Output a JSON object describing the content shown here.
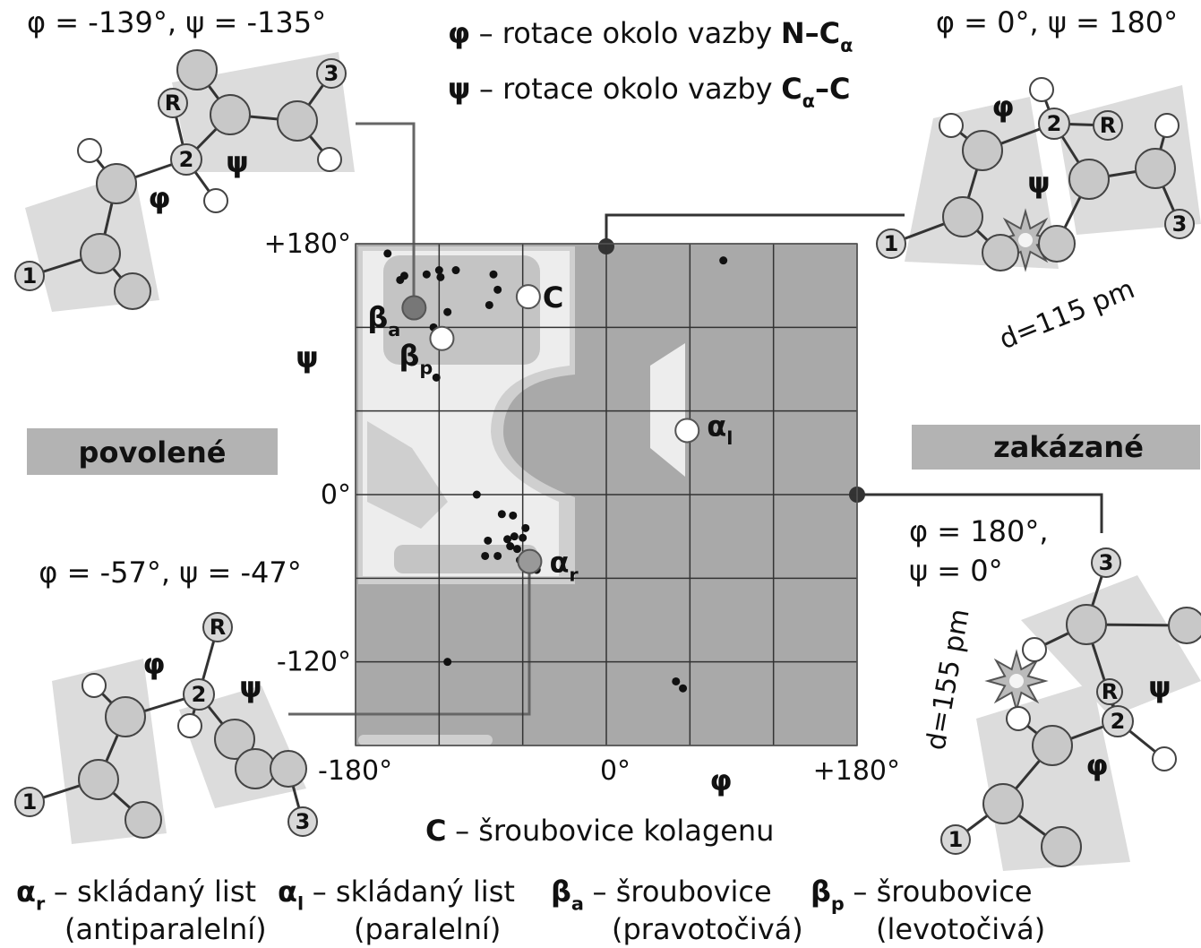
{
  "chart_data": {
    "type": "scatter",
    "header": [
      [
        {
          "text": "φ",
          "style": "bold"
        },
        {
          "text": "– rotace okolo vazby",
          "style": "normal"
        },
        {
          "text": "N–C",
          "style": "bold"
        },
        {
          "text": "α",
          "style": "bold-sub"
        }
      ],
      [
        {
          "text": "ψ",
          "style": "bold"
        },
        {
          "text": "– rotace okolo vazby",
          "style": "normal"
        },
        {
          "text": "C",
          "style": "bold"
        },
        {
          "text": "α",
          "style": "bold-sub"
        },
        {
          "text": "–C",
          "style": "bold"
        }
      ]
    ],
    "x_label": "φ",
    "y_label": "ψ",
    "xlim": [
      -180,
      180
    ],
    "ylim": [
      -180,
      180
    ],
    "xticks": [
      {
        "value": -180,
        "label": "-180°"
      },
      {
        "value": -120,
        "label": null
      },
      {
        "value": -60,
        "label": null
      },
      {
        "value": 0,
        "label": "0°"
      },
      {
        "value": 60,
        "label": null
      },
      {
        "value": 120,
        "label": null
      },
      {
        "value": 180,
        "label": "+180°"
      }
    ],
    "yticks": [
      {
        "value": 180,
        "label": "+180°"
      },
      {
        "value": 120,
        "label": null
      },
      {
        "value": 60,
        "label": null
      },
      {
        "value": 0,
        "label": "0°"
      },
      {
        "value": -60,
        "label": null
      },
      {
        "value": -120,
        "label": "-120°"
      },
      {
        "value": -180,
        "label": null
      }
    ],
    "grid": true,
    "color": "#111111",
    "x": [
      -157,
      -148,
      -145,
      -129,
      -120,
      -119,
      -108,
      -81,
      -78,
      -84,
      -114,
      -124,
      -115,
      -122,
      84,
      -93,
      -75,
      -67,
      -58,
      -66,
      -71,
      -85,
      -60,
      -69,
      -64,
      -87,
      -78,
      -62,
      -57,
      -50,
      -114,
      50,
      55
    ],
    "y": [
      173,
      154,
      157,
      158,
      161,
      156,
      161,
      158,
      147,
      136,
      131,
      120,
      107,
      84,
      168,
      0,
      -14,
      -15,
      -24,
      -30,
      -32,
      -33,
      -31,
      -37,
      -39,
      -44,
      -44,
      -47,
      -51,
      -54,
      -120,
      -134,
      -139
    ],
    "markers": [
      {
        "label": [
          {
            "text": "β",
            "style": "bold"
          },
          {
            "text": "a",
            "style": "bold-sub"
          }
        ],
        "x": -138,
        "y": 134,
        "color": "#777777"
      },
      {
        "label": [
          {
            "text": "C",
            "style": "bold"
          }
        ],
        "x": -56,
        "y": 142,
        "color": "#ffffff"
      },
      {
        "label": [
          {
            "text": "β",
            "style": "bold"
          },
          {
            "text": "p",
            "style": "bold-sub"
          }
        ],
        "x": -118,
        "y": 112,
        "color": "#ffffff"
      },
      {
        "label": [
          {
            "text": "α",
            "style": "bold"
          },
          {
            "text": "l",
            "style": "bold-sub"
          }
        ],
        "x": 58,
        "y": 46,
        "color": "#ffffff"
      },
      {
        "label": [
          {
            "text": "α",
            "style": "bold"
          },
          {
            "text": "r",
            "style": "bold-sub"
          }
        ],
        "x": -55,
        "y": -48,
        "color": "#999999"
      }
    ],
    "regions": [
      "povolené",
      "zakázané"
    ],
    "note": [
      {
        "text": "C",
        "style": "bold"
      },
      {
        "text": "– šroubovice kolagenu",
        "style": "normal"
      }
    ],
    "molecules": [
      {
        "caption": [
          "φ = -139°, ψ = -135°"
        ],
        "labels": [
          "1",
          "2",
          "3",
          "R",
          "φ",
          "ψ"
        ]
      },
      {
        "caption": [
          "φ = 0°, ψ = 180°"
        ],
        "labels": [
          "1",
          "2",
          "3",
          "R",
          "φ",
          "ψ"
        ],
        "distance": "d=115 pm"
      },
      {
        "caption": [
          "φ = -57°, ψ = -47°"
        ],
        "labels": [
          "1",
          "2",
          "3",
          "R",
          "φ",
          "ψ"
        ]
      },
      {
        "caption": [
          "φ = 180°,",
          "ψ = 0°"
        ],
        "labels": [
          "1",
          "2",
          "3",
          "R",
          "φ",
          "ψ"
        ],
        "distance": "d=155 pm"
      }
    ],
    "legend": [
      {
        "line1": [
          {
            "text": "α",
            "style": "bold"
          },
          {
            "text": "r",
            "style": "bold-sub"
          },
          {
            "text": "– skládaný list",
            "style": "normal"
          }
        ],
        "line2": "(antiparalelní)"
      },
      {
        "line1": [
          {
            "text": "α",
            "style": "bold"
          },
          {
            "text": "l",
            "style": "bold-sub"
          },
          {
            "text": "– skládaný list",
            "style": "normal"
          }
        ],
        "line2": "(paralelní)"
      },
      {
        "line1": [
          {
            "text": "β",
            "style": "bold"
          },
          {
            "text": "a",
            "style": "bold-sub"
          },
          {
            "text": "– šroubovice",
            "style": "normal"
          }
        ],
        "line2": "(pravotočivá)"
      },
      {
        "line1": [
          {
            "text": "β",
            "style": "bold"
          },
          {
            "text": "p",
            "style": "bold-sub"
          },
          {
            "text": "– šroubovice",
            "style": "normal"
          }
        ],
        "line2": "(levotočivá)"
      }
    ]
  }
}
